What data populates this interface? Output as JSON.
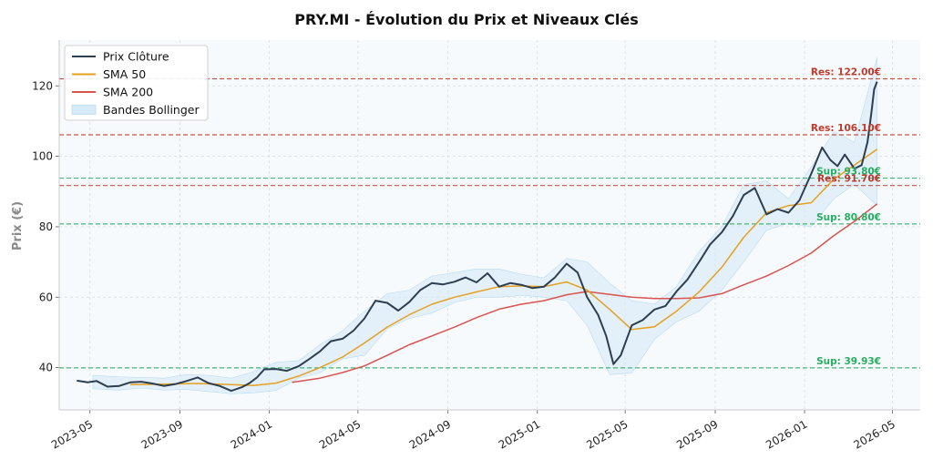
{
  "chart_data": {
    "type": "line",
    "title": "PRY.MI - Évolution du Prix et Niveaux Clés",
    "ylabel": "Prix (€)",
    "xlabel": "",
    "ylim": [
      28,
      133
    ],
    "xlim": [
      "2023-03-20",
      "2026-06-08"
    ],
    "yticks": [
      40,
      60,
      80,
      100,
      120
    ],
    "xticks": [
      {
        "date": "2023-05-01",
        "label": "2023-05"
      },
      {
        "date": "2023-09-01",
        "label": "2023-09"
      },
      {
        "date": "2024-01-01",
        "label": "2024-01"
      },
      {
        "date": "2024-05-01",
        "label": "2024-05"
      },
      {
        "date": "2024-09-01",
        "label": "2024-09"
      },
      {
        "date": "2025-01-01",
        "label": "2025-01"
      },
      {
        "date": "2025-05-01",
        "label": "2025-05"
      },
      {
        "date": "2025-09-01",
        "label": "2025-09"
      },
      {
        "date": "2026-01-01",
        "label": "2026-01"
      },
      {
        "date": "2026-05-01",
        "label": "2026-05"
      }
    ],
    "grid": true,
    "legend": {
      "position": "top-left",
      "entries": [
        {
          "label": "Prix Clôture",
          "color": "#2c3e50",
          "kind": "line"
        },
        {
          "label": "SMA 50",
          "color": "#e6a020",
          "kind": "line"
        },
        {
          "label": "SMA 200",
          "color": "#d9534f",
          "kind": "line"
        },
        {
          "label": "Bandes Bollinger",
          "color": "#d6eaf8",
          "kind": "patch"
        }
      ]
    },
    "levels": [
      {
        "label": "Res: 122.00€",
        "value": 122.0,
        "color": "#c0392b",
        "kind": "resistance"
      },
      {
        "label": "Res: 106.10€",
        "value": 106.1,
        "color": "#c0392b",
        "kind": "resistance"
      },
      {
        "label": "Sup: 93.80€",
        "value": 93.8,
        "color": "#27ae60",
        "kind": "support"
      },
      {
        "label": "Res: 91.70€",
        "value": 91.7,
        "color": "#c0392b",
        "kind": "resistance"
      },
      {
        "label": "Sup: 80.80€",
        "value": 80.8,
        "color": "#27ae60",
        "kind": "support"
      },
      {
        "label": "Sup: 39.93€",
        "value": 39.93,
        "color": "#27ae60",
        "kind": "support"
      }
    ],
    "series": [
      {
        "name": "Prix Clôture",
        "color": "#2c3e50",
        "points": [
          [
            "2023-04-13",
            36.3
          ],
          [
            "2023-04-28",
            35.8
          ],
          [
            "2023-05-10",
            36.2
          ],
          [
            "2023-05-25",
            34.6
          ],
          [
            "2023-06-10",
            34.8
          ],
          [
            "2023-06-25",
            35.8
          ],
          [
            "2023-07-10",
            36.0
          ],
          [
            "2023-07-25",
            35.5
          ],
          [
            "2023-08-10",
            34.8
          ],
          [
            "2023-08-25",
            35.3
          ],
          [
            "2023-09-10",
            36.2
          ],
          [
            "2023-09-25",
            37.2
          ],
          [
            "2023-10-10",
            35.6
          ],
          [
            "2023-10-25",
            34.8
          ],
          [
            "2023-11-10",
            33.4
          ],
          [
            "2023-11-25",
            34.5
          ],
          [
            "2023-12-05",
            35.6
          ],
          [
            "2023-12-15",
            37.2
          ],
          [
            "2023-12-25",
            39.5
          ],
          [
            "2024-01-10",
            39.6
          ],
          [
            "2024-01-25",
            39.1
          ],
          [
            "2024-02-10",
            40.4
          ],
          [
            "2024-02-25",
            42.5
          ],
          [
            "2024-03-10",
            44.6
          ],
          [
            "2024-03-25",
            47.5
          ],
          [
            "2024-04-10",
            48.2
          ],
          [
            "2024-04-25",
            50.5
          ],
          [
            "2024-05-10",
            54.0
          ],
          [
            "2024-05-25",
            59.0
          ],
          [
            "2024-06-10",
            58.4
          ],
          [
            "2024-06-25",
            56.2
          ],
          [
            "2024-07-10",
            58.6
          ],
          [
            "2024-07-25",
            62.0
          ],
          [
            "2024-08-10",
            64.0
          ],
          [
            "2024-08-25",
            63.6
          ],
          [
            "2024-09-10",
            64.4
          ],
          [
            "2024-09-25",
            65.6
          ],
          [
            "2024-10-10",
            64.2
          ],
          [
            "2024-10-25",
            66.8
          ],
          [
            "2024-11-10",
            63.0
          ],
          [
            "2024-11-25",
            64.0
          ],
          [
            "2024-12-10",
            63.5
          ],
          [
            "2024-12-25",
            62.6
          ],
          [
            "2025-01-10",
            63.0
          ],
          [
            "2025-01-25",
            65.6
          ],
          [
            "2025-02-10",
            69.5
          ],
          [
            "2025-02-25",
            67.0
          ],
          [
            "2025-03-10",
            60.0
          ],
          [
            "2025-03-25",
            55.0
          ],
          [
            "2025-04-05",
            49.0
          ],
          [
            "2025-04-15",
            41.0
          ],
          [
            "2025-04-25",
            43.5
          ],
          [
            "2025-05-10",
            52.0
          ],
          [
            "2025-05-25",
            53.5
          ],
          [
            "2025-06-10",
            56.5
          ],
          [
            "2025-06-25",
            57.5
          ],
          [
            "2025-07-10",
            61.6
          ],
          [
            "2025-07-25",
            65.0
          ],
          [
            "2025-08-10",
            70.0
          ],
          [
            "2025-08-25",
            75.0
          ],
          [
            "2025-09-10",
            78.4
          ],
          [
            "2025-09-25",
            83.0
          ],
          [
            "2025-10-10",
            89.0
          ],
          [
            "2025-10-25",
            91.0
          ],
          [
            "2025-11-10",
            83.5
          ],
          [
            "2025-11-25",
            85.0
          ],
          [
            "2025-12-10",
            84.0
          ],
          [
            "2025-12-25",
            87.5
          ],
          [
            "2026-01-10",
            95.0
          ],
          [
            "2026-01-25",
            102.5
          ],
          [
            "2026-02-05",
            99.0
          ],
          [
            "2026-02-15",
            97.2
          ],
          [
            "2026-02-25",
            100.5
          ],
          [
            "2026-03-10",
            96.5
          ],
          [
            "2026-03-20",
            97.5
          ],
          [
            "2026-03-28",
            104.0
          ],
          [
            "2026-04-02",
            112.0
          ],
          [
            "2026-04-06",
            119.0
          ],
          [
            "2026-04-10",
            121.2
          ]
        ]
      },
      {
        "name": "SMA 50",
        "color": "#e6a020",
        "points": [
          [
            "2023-06-25",
            35.2
          ],
          [
            "2023-08-10",
            35.3
          ],
          [
            "2023-09-25",
            35.5
          ],
          [
            "2023-11-10",
            35.2
          ],
          [
            "2023-12-10",
            34.9
          ],
          [
            "2024-01-10",
            35.6
          ],
          [
            "2024-02-10",
            37.6
          ],
          [
            "2024-03-10",
            40.0
          ],
          [
            "2024-04-10",
            43.0
          ],
          [
            "2024-05-10",
            47.0
          ],
          [
            "2024-06-10",
            51.5
          ],
          [
            "2024-07-10",
            55.0
          ],
          [
            "2024-08-10",
            58.0
          ],
          [
            "2024-09-10",
            60.0
          ],
          [
            "2024-10-10",
            61.5
          ],
          [
            "2024-11-10",
            63.0
          ],
          [
            "2024-12-10",
            63.2
          ],
          [
            "2025-01-10",
            63.0
          ],
          [
            "2025-02-10",
            64.3
          ],
          [
            "2025-03-10",
            62.0
          ],
          [
            "2025-04-10",
            56.5
          ],
          [
            "2025-05-10",
            50.8
          ],
          [
            "2025-06-10",
            51.6
          ],
          [
            "2025-07-10",
            56.0
          ],
          [
            "2025-08-10",
            61.5
          ],
          [
            "2025-09-10",
            68.5
          ],
          [
            "2025-10-10",
            77.0
          ],
          [
            "2025-11-10",
            84.0
          ],
          [
            "2025-12-10",
            86.0
          ],
          [
            "2026-01-10",
            86.8
          ],
          [
            "2026-02-10",
            93.5
          ],
          [
            "2026-03-10",
            97.5
          ],
          [
            "2026-04-10",
            102.0
          ]
        ]
      },
      {
        "name": "SMA 200",
        "color": "#d9534f",
        "points": [
          [
            "2024-02-01",
            35.8
          ],
          [
            "2024-03-10",
            37.0
          ],
          [
            "2024-04-10",
            38.6
          ],
          [
            "2024-05-10",
            40.5
          ],
          [
            "2024-06-10",
            43.5
          ],
          [
            "2024-07-10",
            46.5
          ],
          [
            "2024-08-10",
            49.0
          ],
          [
            "2024-09-10",
            51.5
          ],
          [
            "2024-10-10",
            54.2
          ],
          [
            "2024-11-10",
            56.6
          ],
          [
            "2024-12-10",
            58.0
          ],
          [
            "2025-01-10",
            59.0
          ],
          [
            "2025-02-10",
            60.7
          ],
          [
            "2025-03-10",
            61.6
          ],
          [
            "2025-04-10",
            60.8
          ],
          [
            "2025-05-10",
            60.0
          ],
          [
            "2025-06-10",
            59.6
          ],
          [
            "2025-07-10",
            59.6
          ],
          [
            "2025-08-10",
            59.8
          ],
          [
            "2025-09-10",
            61.0
          ],
          [
            "2025-10-10",
            63.5
          ],
          [
            "2025-11-10",
            66.0
          ],
          [
            "2025-12-10",
            69.0
          ],
          [
            "2026-01-10",
            72.5
          ],
          [
            "2026-02-10",
            77.5
          ],
          [
            "2026-03-10",
            81.5
          ],
          [
            "2026-04-10",
            86.5
          ]
        ]
      }
    ],
    "bollinger": {
      "name": "Bandes Bollinger",
      "color": "#d6eaf8",
      "points": [
        [
          "2023-05-05",
          37.8,
          34.0
        ],
        [
          "2023-06-10",
          37.4,
          33.6
        ],
        [
          "2023-07-10",
          37.2,
          34.2
        ],
        [
          "2023-08-10",
          37.0,
          33.6
        ],
        [
          "2023-09-10",
          38.0,
          33.8
        ],
        [
          "2023-10-10",
          37.8,
          33.2
        ],
        [
          "2023-11-10",
          37.0,
          32.6
        ],
        [
          "2023-12-10",
          38.8,
          32.8
        ],
        [
          "2024-01-10",
          41.5,
          33.5
        ],
        [
          "2024-02-10",
          42.0,
          37.0
        ],
        [
          "2024-03-10",
          46.5,
          38.5
        ],
        [
          "2024-04-10",
          50.5,
          42.5
        ],
        [
          "2024-05-10",
          56.0,
          43.5
        ],
        [
          "2024-06-10",
          61.0,
          51.0
        ],
        [
          "2024-07-10",
          62.0,
          54.0
        ],
        [
          "2024-08-10",
          66.0,
          55.5
        ],
        [
          "2024-09-10",
          67.0,
          58.5
        ],
        [
          "2024-10-10",
          68.0,
          60.0
        ],
        [
          "2024-11-10",
          68.0,
          60.0
        ],
        [
          "2024-12-10",
          66.5,
          60.5
        ],
        [
          "2025-01-10",
          65.5,
          60.0
        ],
        [
          "2025-02-10",
          71.0,
          59.0
        ],
        [
          "2025-03-10",
          70.0,
          52.0
        ],
        [
          "2025-04-10",
          64.0,
          38.0
        ],
        [
          "2025-05-10",
          59.0,
          38.5
        ],
        [
          "2025-06-10",
          58.0,
          48.0
        ],
        [
          "2025-07-10",
          63.0,
          53.0
        ],
        [
          "2025-08-10",
          73.0,
          56.0
        ],
        [
          "2025-09-10",
          80.0,
          62.0
        ],
        [
          "2025-10-10",
          92.0,
          70.0
        ],
        [
          "2025-11-10",
          93.0,
          79.0
        ],
        [
          "2025-12-10",
          88.0,
          81.0
        ],
        [
          "2026-01-10",
          97.0,
          80.0
        ],
        [
          "2026-02-10",
          107.0,
          88.0
        ],
        [
          "2026-03-10",
          104.0,
          92.0
        ],
        [
          "2026-04-10",
          128.0,
          86.0
        ]
      ]
    }
  }
}
